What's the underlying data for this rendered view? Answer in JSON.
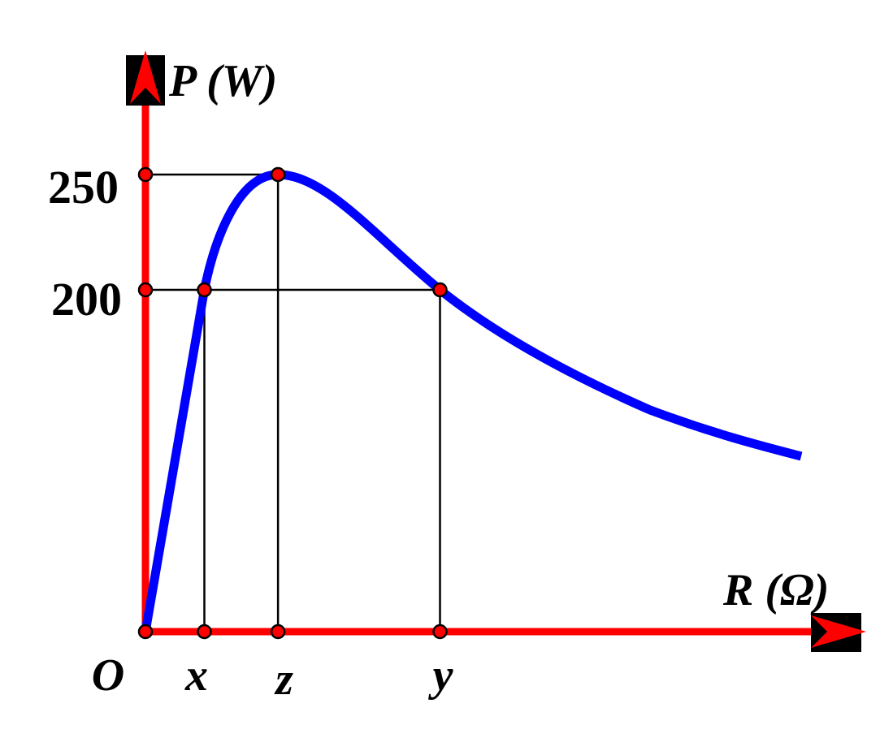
{
  "chart_data": {
    "type": "line",
    "title": "",
    "xlabel": "R (Ω)",
    "ylabel": "P (W)",
    "origin_label": "O",
    "x_tick_labels": [
      "x",
      "z",
      "y"
    ],
    "y_tick_labels": [
      "200",
      "250"
    ],
    "y_ticks": [
      200,
      250
    ],
    "x_ticks_rel": [
      1,
      2.25,
      5
    ],
    "ylim": [
      0,
      300
    ],
    "xlim": [
      0,
      12
    ],
    "peak": {
      "x_label": "z",
      "P": 250
    },
    "points_at_200": [
      "x",
      "y"
    ],
    "grid": false,
    "colors": {
      "curve": "#0000ff",
      "axes": "#ff0000",
      "guides": "#000000",
      "points": "#ff0000"
    }
  }
}
